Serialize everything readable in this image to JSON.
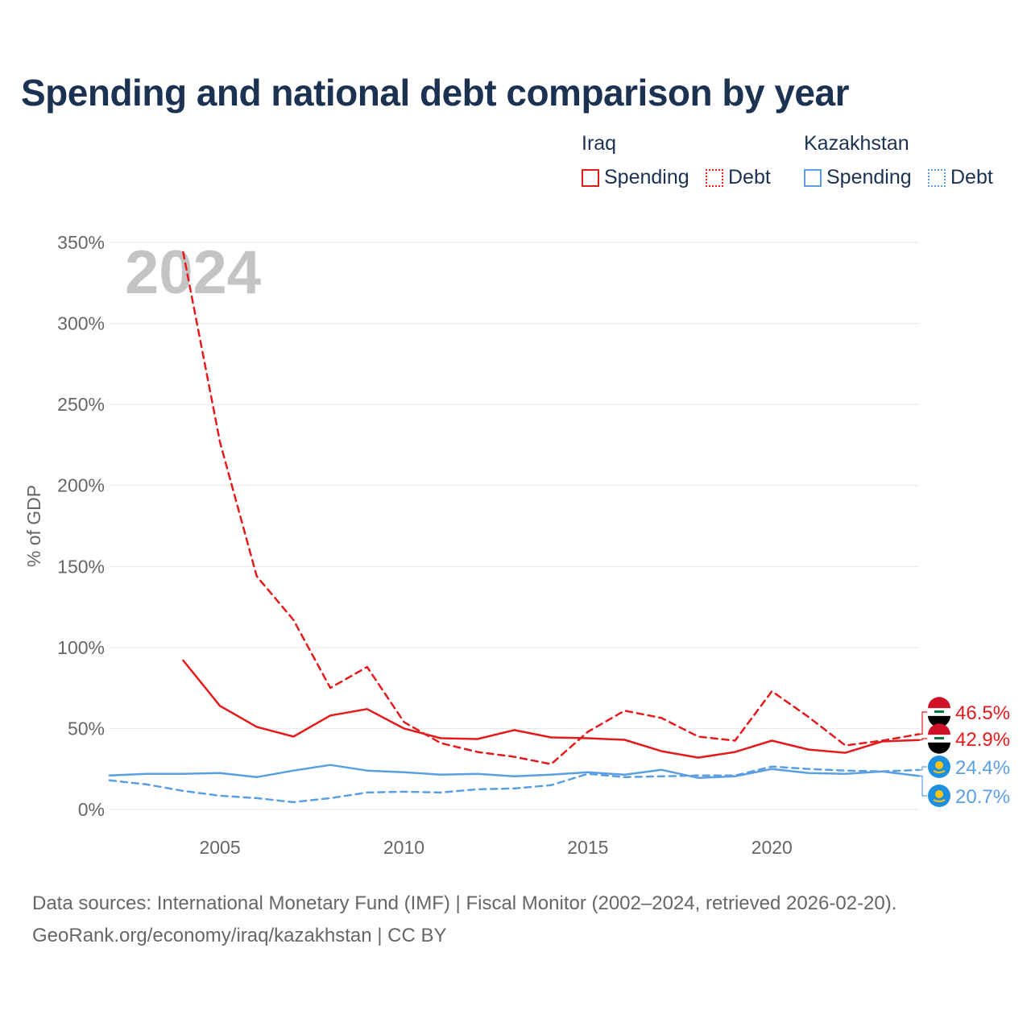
{
  "chart_data": {
    "type": "line",
    "title": "Spending and national debt comparison by year",
    "ylabel": "% of GDP",
    "xlabel": "",
    "xlim": [
      2002,
      2024
    ],
    "ylim": [
      0,
      350
    ],
    "y_ticks": [
      {
        "value": 0,
        "label": "0%"
      },
      {
        "value": 50,
        "label": "50%"
      },
      {
        "value": 100,
        "label": "100%"
      },
      {
        "value": 150,
        "label": "150%"
      },
      {
        "value": 200,
        "label": "200%"
      },
      {
        "value": 250,
        "label": "250%"
      },
      {
        "value": 300,
        "label": "300%"
      },
      {
        "value": 350,
        "label": "350%"
      }
    ],
    "x_ticks": [
      {
        "value": 2005,
        "label": "2005"
      },
      {
        "value": 2010,
        "label": "2010"
      },
      {
        "value": 2015,
        "label": "2015"
      },
      {
        "value": 2020,
        "label": "2020"
      }
    ],
    "year_watermark": "2024",
    "grid": true,
    "series": [
      {
        "key": "iraq_spending",
        "country": "Iraq",
        "metric": "Spending",
        "color": "#e41a1c",
        "dash": "solid",
        "x": [
          2004,
          2005,
          2006,
          2007,
          2008,
          2009,
          2010,
          2011,
          2012,
          2013,
          2014,
          2015,
          2016,
          2017,
          2018,
          2019,
          2020,
          2021,
          2022,
          2023,
          2024
        ],
        "values": [
          92,
          64,
          51,
          45,
          58,
          62,
          50,
          44,
          43.5,
          49,
          44.5,
          44,
          43,
          36,
          32,
          35.5,
          42.5,
          37,
          35,
          42,
          42.9
        ],
        "end_label": "42.9%"
      },
      {
        "key": "iraq_debt",
        "country": "Iraq",
        "metric": "Debt",
        "color": "#e41a1c",
        "dash": "dashed",
        "x": [
          2004,
          2005,
          2006,
          2007,
          2008,
          2009,
          2010,
          2011,
          2012,
          2013,
          2014,
          2015,
          2016,
          2017,
          2018,
          2019,
          2020,
          2021,
          2022,
          2023,
          2024
        ],
        "values": [
          344,
          227,
          144,
          117,
          75,
          88,
          54,
          41,
          35.5,
          32.5,
          28,
          48,
          61,
          56.5,
          45,
          42.5,
          73,
          57,
          39.5,
          42.5,
          46.5
        ],
        "end_label": "46.5%"
      },
      {
        "key": "kaz_spending",
        "country": "Kazakhstan",
        "metric": "Spending",
        "color": "#5b9fe3",
        "dash": "solid",
        "x": [
          2002,
          2003,
          2004,
          2005,
          2006,
          2007,
          2008,
          2009,
          2010,
          2011,
          2012,
          2013,
          2014,
          2015,
          2016,
          2017,
          2018,
          2019,
          2020,
          2021,
          2022,
          2023,
          2024
        ],
        "values": [
          21,
          22,
          22,
          22.5,
          20,
          24,
          27.5,
          24,
          23,
          21.5,
          22,
          20.5,
          21.5,
          23,
          21.5,
          24.5,
          19.5,
          20.5,
          25,
          22.5,
          22,
          23.5,
          20.7
        ],
        "end_label": "20.7%"
      },
      {
        "key": "kaz_debt",
        "country": "Kazakhstan",
        "metric": "Debt",
        "color": "#5b9fe3",
        "dash": "dashed",
        "x": [
          2002,
          2003,
          2004,
          2005,
          2006,
          2007,
          2008,
          2009,
          2010,
          2011,
          2012,
          2013,
          2014,
          2015,
          2016,
          2017,
          2018,
          2019,
          2020,
          2021,
          2022,
          2023,
          2024
        ],
        "values": [
          18,
          15.5,
          11.5,
          8.5,
          7,
          4.5,
          7,
          10.5,
          11,
          10.5,
          12.5,
          13,
          15,
          22,
          20,
          20.5,
          21,
          21,
          26.5,
          25,
          24,
          23.5,
          24.4
        ],
        "end_label": "24.4%"
      }
    ]
  },
  "legend": {
    "iraq": {
      "name": "Iraq",
      "spending": "Spending",
      "debt": "Debt"
    },
    "kazakhstan": {
      "name": "Kazakhstan",
      "spending": "Spending",
      "debt": "Debt"
    }
  },
  "colors": {
    "iraq": "#e41a1c",
    "kazakhstan": "#5b9fe3",
    "title": "#1c3252",
    "axis_text": "#666666",
    "watermark": "#c4c4c4",
    "grid": "#e6e6e6"
  },
  "flags": {
    "iraq": "iraq-flag-icon",
    "kazakhstan": "kazakhstan-flag-icon"
  },
  "source": {
    "line1": "Data sources: International Monetary Fund (IMF) | Fiscal Monitor (2002–2024, retrieved 2026-02-20).",
    "line2": "GeoRank.org/economy/iraq/kazakhstan | CC BY"
  }
}
